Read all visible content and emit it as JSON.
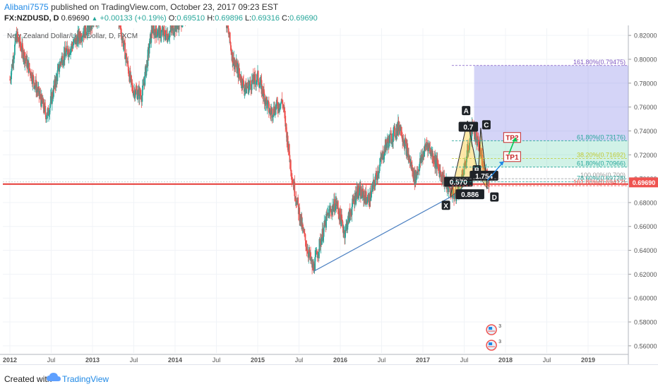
{
  "header": {
    "author": "Alibani7575",
    "published_text": "published on TradingView.com, October 23, 2017 09:23 EST",
    "symbol": "FX:NZDUSD, D",
    "last": "0.69690",
    "change": "+0.00133 (+0.19%)",
    "o_label": "O:",
    "o_value": "0.69510",
    "h_label": "H:",
    "h_value": "0.69896",
    "l_label": "L:",
    "l_value": "0.69316",
    "c_label": "C:",
    "c_value": "0.69690"
  },
  "chart_data": {
    "type": "candlestick",
    "title": "New Zealand Dollar/U.S. Dollar, D, FXCM",
    "ylim": [
      0.554,
      0.826
    ],
    "y_ticks": [
      "0.82000",
      "0.80000",
      "0.78000",
      "0.76000",
      "0.74000",
      "0.72000",
      "0.70000",
      "0.68000",
      "0.66000",
      "0.64000",
      "0.62000",
      "0.60000",
      "0.58000",
      "0.56000"
    ],
    "x_ticks": [
      "2012",
      "Jul",
      "2013",
      "Jul",
      "2014",
      "Jul",
      "2015",
      "Jul",
      "2016",
      "Jul",
      "2017",
      "Jul",
      "2018",
      "Jul",
      "2019"
    ],
    "price_path": [
      [
        2012.0,
        0.783
      ],
      [
        2012.08,
        0.82
      ],
      [
        2012.3,
        0.78
      ],
      [
        2012.45,
        0.752
      ],
      [
        2012.62,
        0.8
      ],
      [
        2012.85,
        0.82
      ],
      [
        2013.15,
        0.84
      ],
      [
        2013.3,
        0.84
      ],
      [
        2013.48,
        0.775
      ],
      [
        2013.6,
        0.77
      ],
      [
        2013.72,
        0.825
      ],
      [
        2013.9,
        0.82
      ],
      [
        2014.1,
        0.835
      ],
      [
        2014.3,
        0.856
      ],
      [
        2014.55,
        0.86
      ],
      [
        2014.7,
        0.8
      ],
      [
        2014.85,
        0.775
      ],
      [
        2015.0,
        0.785
      ],
      [
        2015.15,
        0.755
      ],
      [
        2015.3,
        0.765
      ],
      [
        2015.42,
        0.7
      ],
      [
        2015.55,
        0.655
      ],
      [
        2015.67,
        0.624
      ],
      [
        2015.75,
        0.645
      ],
      [
        2015.85,
        0.67
      ],
      [
        2015.95,
        0.68
      ],
      [
        2016.05,
        0.655
      ],
      [
        2016.2,
        0.69
      ],
      [
        2016.35,
        0.682
      ],
      [
        2016.55,
        0.728
      ],
      [
        2016.72,
        0.745
      ],
      [
        2016.9,
        0.7
      ],
      [
        2017.05,
        0.73
      ],
      [
        2017.18,
        0.71
      ],
      [
        2017.28,
        0.695
      ],
      [
        2017.4,
        0.685
      ],
      [
        2017.5,
        0.707
      ],
      [
        2017.6,
        0.744
      ],
      [
        2017.7,
        0.72
      ],
      [
        2017.8,
        0.697
      ]
    ],
    "last_price": "0.69690",
    "horizontal_level": 0.6955,
    "pattern": {
      "points": [
        {
          "name": "X",
          "x": 2017.33,
          "y": 0.6845
        },
        {
          "name": "A",
          "x": 2017.54,
          "y": 0.7485
        },
        {
          "name": "B",
          "x": 2017.67,
          "y": 0.7035
        },
        {
          "name": "C",
          "x": 2017.7,
          "y": 0.7425
        },
        {
          "name": "D",
          "x": 2017.78,
          "y": 0.6915
        }
      ],
      "ratios": [
        "0.7",
        "1.754",
        "0.570",
        "0.886"
      ]
    },
    "fib_levels": [
      {
        "label": "161.80%(0.79475)",
        "y": 0.7948,
        "color": "#7e57c2"
      },
      {
        "label": "61.80%(0.73176)",
        "y": 0.7318,
        "color": "#26a69a"
      },
      {
        "label": "38.20%(0.71692)",
        "y": 0.7169,
        "color": "#c0ca33"
      },
      {
        "label": "61.80%(0.70966)",
        "y": 0.7097,
        "color": "#26a69a"
      },
      {
        "label": "100.00%(0.700)",
        "y": 0.7,
        "color": "#9e9e9e"
      },
      {
        "label": "78.60%(0.69728)",
        "y": 0.6973,
        "color": "#26a69a"
      },
      {
        "label": "161.80%(0.69412)",
        "y": 0.6941,
        "color": "#ef5350"
      }
    ],
    "targets": [
      {
        "label": "TP2",
        "y": 0.7345
      },
      {
        "label": "TP1",
        "y": 0.7185
      }
    ],
    "trendline": {
      "from": [
        2015.68,
        0.6225
      ],
      "to": [
        2017.33,
        0.6845
      ]
    }
  },
  "footer": {
    "created_with": "Created with",
    "brand": "TradingView"
  }
}
